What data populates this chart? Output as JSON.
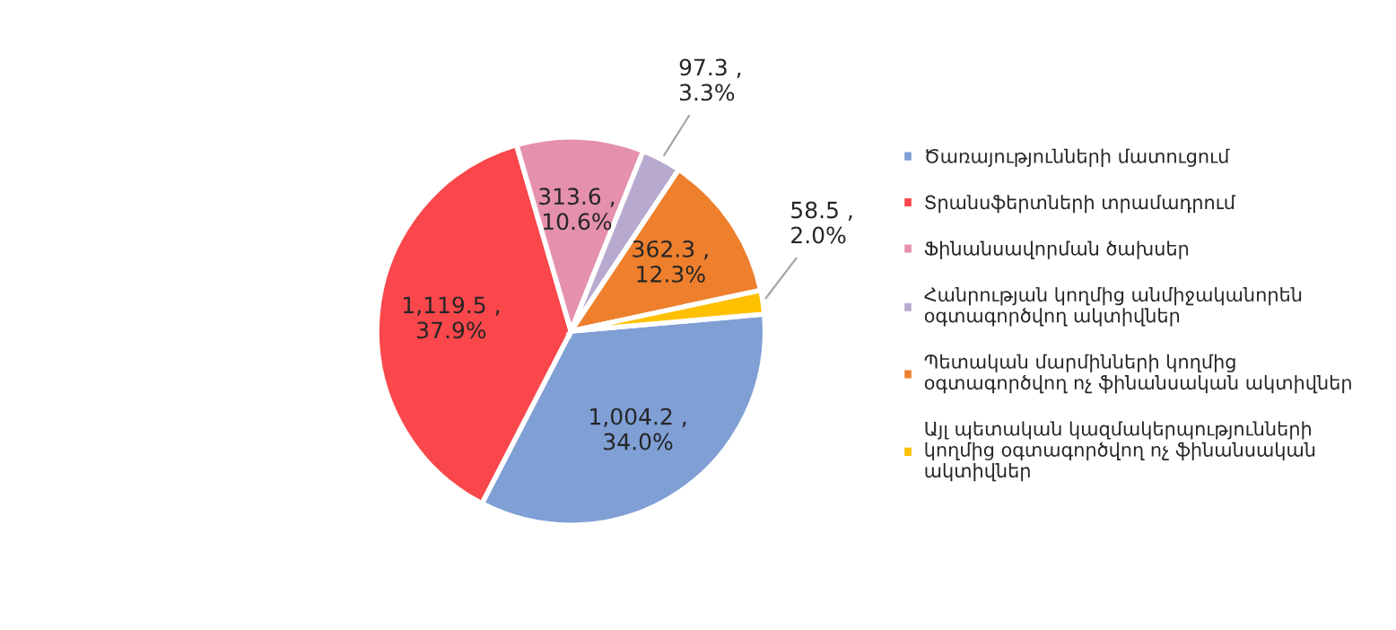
{
  "chart_data": {
    "type": "pie",
    "categories": [
      "Ծառայությունների մատուցում",
      "Տրանսֆերտների տրամադրում",
      "Ֆինանսավորման ծախսեր",
      "Հանրության կողմից անմիջականորեն\nօգտագործվող ակտիվներ",
      "Պետական մարմինների կողմից\nօգտագործվող ոչ ֆինանսական ակտիվներ",
      "Այլ պետական կազմակերպությունների\nկողմից օգտագործվող ոչ ֆինանսական\nակտիվներ"
    ],
    "values": [
      1004.2,
      1119.5,
      313.6,
      97.3,
      362.3,
      58.5
    ],
    "value_labels": [
      "1,004.2 ,\n34.0%",
      "1,119.5 ,\n37.9%",
      "313.6 ,\n10.6%",
      "97.3 ,\n3.3%",
      "362.3 ,\n12.3%",
      "58.5 ,\n2.0%"
    ],
    "colors": [
      "#7f9fd5",
      "#f9474b",
      "#e591ac",
      "#b8a9cf",
      "#ee7f2d",
      "#ffc000"
    ],
    "legend": "right"
  }
}
